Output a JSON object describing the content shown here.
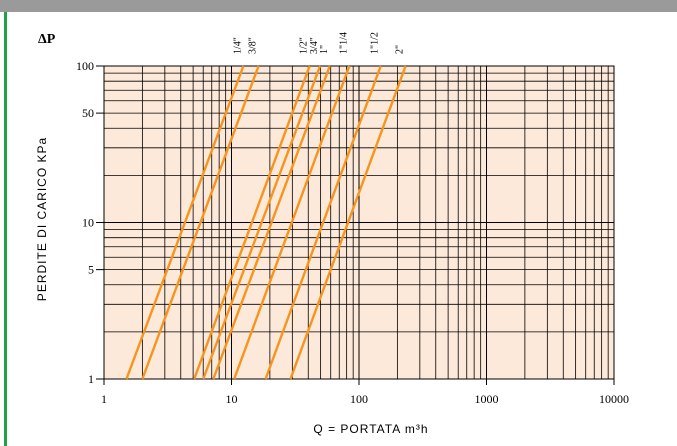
{
  "header": {
    "banner_text": ""
  },
  "chart_data": {
    "type": "line",
    "title": "",
    "delta_p_label": "ΔP",
    "xlabel": "Q = PORTATA m³h",
    "ylabel": "PERDITE DI CARICO KPa",
    "x_scale": "log",
    "y_scale": "log",
    "xlim": [
      1,
      10000
    ],
    "ylim": [
      1,
      100
    ],
    "x_ticks": [
      1,
      10,
      100,
      1000,
      10000
    ],
    "x_tick_labels": [
      "1",
      "10",
      "100",
      "1000",
      "10000"
    ],
    "y_ticks": [
      1,
      5,
      10,
      50,
      100
    ],
    "y_tick_labels": [
      "1",
      "5",
      "10",
      "50",
      "100"
    ],
    "grid": true,
    "background_color": "#fde9d9",
    "line_color": "#f7941d",
    "series": [
      {
        "name": "1/4\"",
        "x": [
          1.5,
          12.4
        ],
        "y": [
          1,
          100
        ]
      },
      {
        "name": "3/8\"",
        "x": [
          2.0,
          16.3
        ],
        "y": [
          1,
          100
        ]
      },
      {
        "name": "1/2\"",
        "x": [
          5.1,
          41.0
        ],
        "y": [
          1,
          100
        ]
      },
      {
        "name": "3/4\"",
        "x": [
          6.0,
          49.5
        ],
        "y": [
          1,
          100
        ]
      },
      {
        "name": "1\"",
        "x": [
          7.2,
          59.0
        ],
        "y": [
          1,
          100
        ]
      },
      {
        "name": "1\"1/4",
        "x": [
          10.5,
          84.0
        ],
        "y": [
          1,
          100
        ]
      },
      {
        "name": "1\"1/2",
        "x": [
          18.5,
          148.0
        ],
        "y": [
          1,
          100
        ]
      },
      {
        "name": "2\"",
        "x": [
          29.0,
          232.0
        ],
        "y": [
          1,
          100
        ]
      }
    ]
  }
}
